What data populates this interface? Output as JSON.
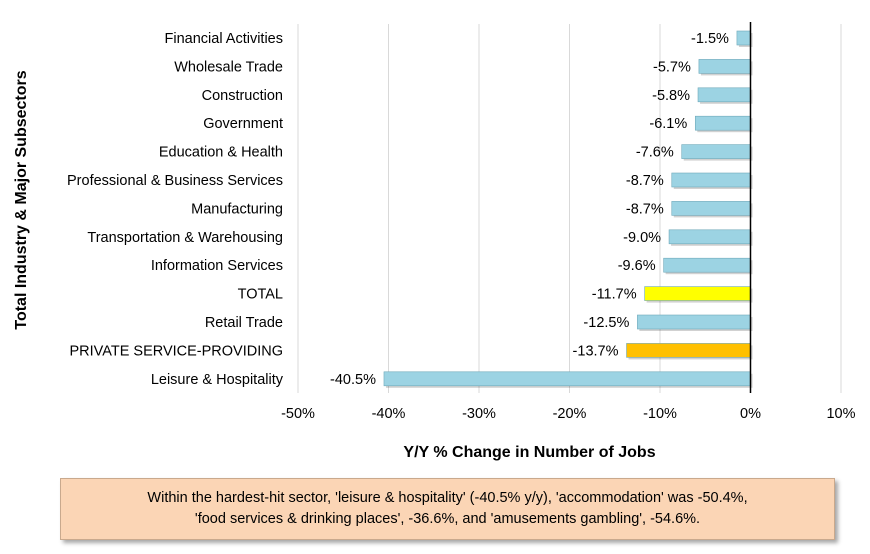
{
  "chart_data": {
    "type": "bar",
    "orientation": "horizontal",
    "categories": [
      "Financial Activities",
      "Wholesale Trade",
      "Construction",
      "Government",
      "Education & Health",
      "Professional & Business Services",
      "Manufacturing",
      "Transportation & Warehousing",
      "Information Services",
      "TOTAL",
      "Retail Trade",
      "PRIVATE SERVICE-PROVIDING",
      "Leisure & Hospitality"
    ],
    "values": [
      -1.5,
      -5.7,
      -5.8,
      -6.1,
      -7.6,
      -8.7,
      -8.7,
      -9.0,
      -9.6,
      -11.7,
      -12.5,
      -13.7,
      -40.5
    ],
    "data_labels": [
      "-1.5%",
      "-5.7%",
      "-5.8%",
      "-6.1%",
      "-7.6%",
      "-8.7%",
      "-8.7%",
      "-9.0%",
      "-9.6%",
      "-11.7%",
      "-12.5%",
      "-13.7%",
      "-40.5%"
    ],
    "bar_colors": [
      "#9cd3e3",
      "#9cd3e3",
      "#9cd3e3",
      "#9cd3e3",
      "#9cd3e3",
      "#9cd3e3",
      "#9cd3e3",
      "#9cd3e3",
      "#9cd3e3",
      "#ffff00",
      "#9cd3e3",
      "#ffc000",
      "#9cd3e3"
    ],
    "xlim": [
      -50,
      10
    ],
    "x_ticks": [
      -50,
      -40,
      -30,
      -20,
      -10,
      0,
      10
    ],
    "x_tick_labels": [
      "-50%",
      "-40%",
      "-30%",
      "-20%",
      "-10%",
      "0%",
      "10%"
    ],
    "xlabel": "Y/Y % Change in Number of Jobs",
    "ylabel": "Total Industry & Major Subsectors",
    "grid": "vertical",
    "legend": "none"
  },
  "note": {
    "line1": "Within the hardest-hit sector, 'leisure & hospitality' (-40.5% y/y), 'accommodation' was -50.4%,",
    "line2": "'food services & drinking places', -36.6%, and 'amusements gambling', -54.6%."
  },
  "colors": {
    "bar_default": "#9cd3e3",
    "bar_edge": "#6fa9ba",
    "total_bar": "#ffff00",
    "private_services_bar": "#ffc000",
    "note_background": "#fbd5b5"
  }
}
